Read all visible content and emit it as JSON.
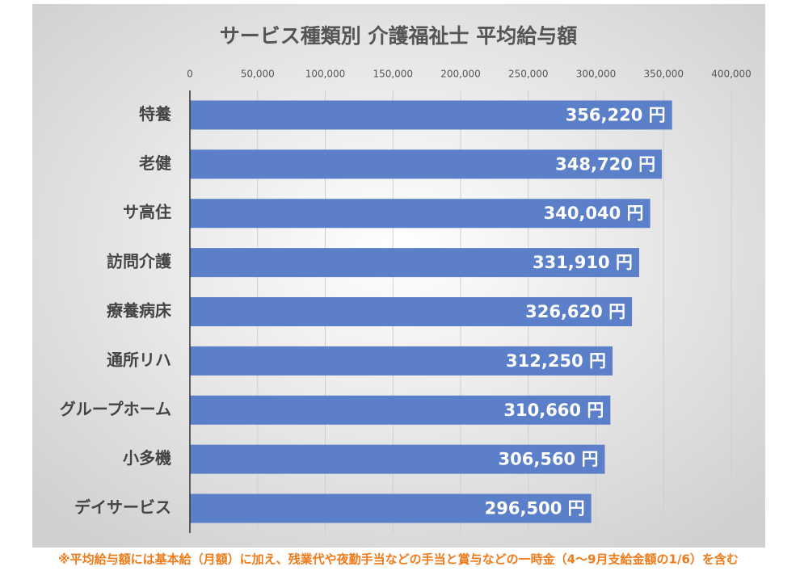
{
  "chart_data": {
    "type": "bar",
    "orientation": "horizontal",
    "title": "サービス種類別 介護福祉士 平均給与額",
    "categories": [
      "特養",
      "老健",
      "サ高住",
      "訪問介護",
      "療養病床",
      "通所リハ",
      "グループホーム",
      "小多機",
      "デイサービス"
    ],
    "values": [
      356220,
      348720,
      340040,
      331910,
      326620,
      312250,
      310660,
      306560,
      296500
    ],
    "value_labels": [
      "356,220 円",
      "348,720 円",
      "340,040 円",
      "331,910 円",
      "326,620 円",
      "312,250 円",
      "310,660 円",
      "306,560 円",
      "296,500 円"
    ],
    "color": "#5b7fc8",
    "xlim": [
      0,
      400000
    ],
    "xticks": [
      0,
      {
        "value": 50000,
        "label": "50,000"
      },
      {
        "value": 100000,
        "label": "100,000"
      },
      {
        "value": 150000,
        "label": "150,000"
      },
      {
        "value": 200000,
        "label": "200,000"
      },
      {
        "value": 250000,
        "label": "250,000"
      },
      {
        "value": 300000,
        "label": "300,000"
      },
      {
        "value": 350000,
        "label": "350,000"
      },
      {
        "value": 400000,
        "label": "400,000"
      }
    ],
    "grid": true,
    "note": "※平均給与額には基本給（月額）に加え、残業代や夜勤手当などの手当と賞与などの一時金（4～9月支給金額の1/6）を含む"
  }
}
